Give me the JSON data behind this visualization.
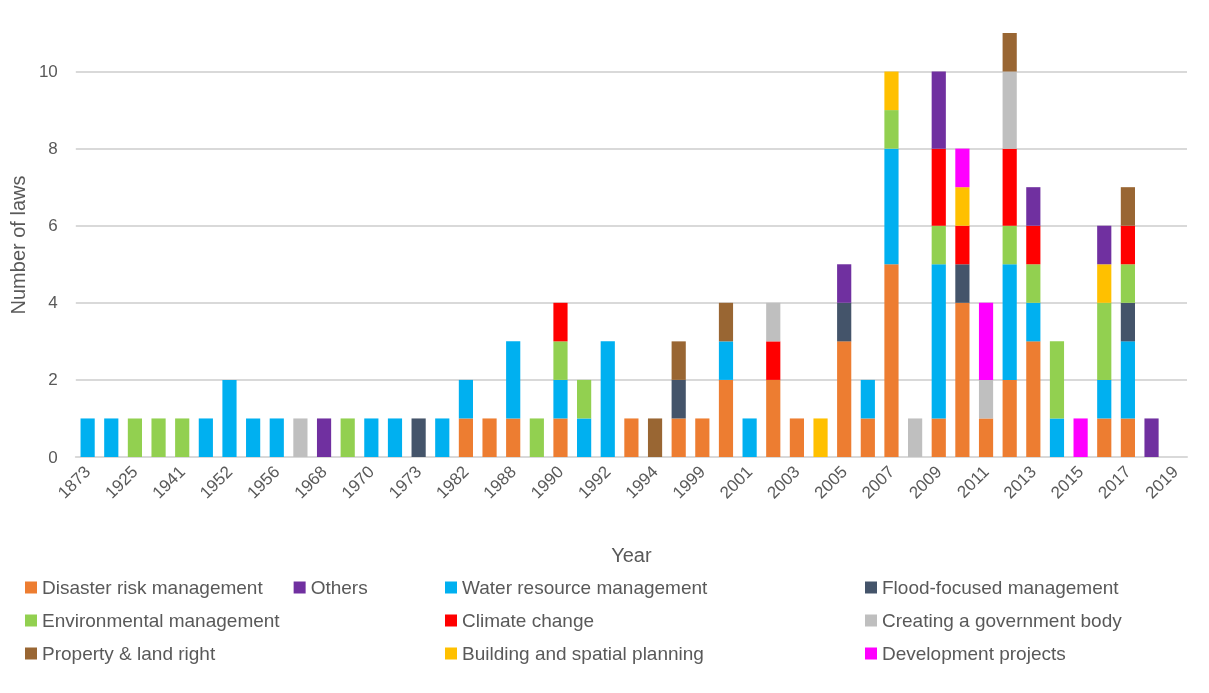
{
  "chart_data": {
    "type": "bar",
    "stacked": true,
    "xlabel": "Year",
    "ylabel": "Number of laws",
    "ylim": [
      0,
      11
    ],
    "yticks": [
      0,
      2,
      4,
      6,
      8,
      10
    ],
    "grid": "y",
    "legend": "bottom",
    "categories": [
      "1873",
      null,
      "1925",
      null,
      "1941",
      null,
      "1952",
      null,
      "1956",
      null,
      "1968",
      null,
      "1970",
      null,
      "1973",
      null,
      "1982",
      null,
      "1988",
      null,
      "1990",
      null,
      "1992",
      null,
      "1994",
      null,
      "1999",
      null,
      "2001",
      null,
      "2003",
      null,
      "2005",
      null,
      "2007",
      null,
      "2009",
      null,
      "2011",
      null,
      "2013",
      null,
      "2015",
      null,
      "2017",
      null,
      "2019"
    ],
    "series": [
      {
        "name": "Disaster risk management",
        "color": "#ed7d31",
        "values": [
          null,
          null,
          null,
          null,
          null,
          null,
          null,
          null,
          null,
          null,
          null,
          null,
          null,
          null,
          null,
          null,
          1,
          1,
          1,
          null,
          1,
          null,
          null,
          1,
          null,
          1,
          1,
          2,
          null,
          2,
          1,
          null,
          3,
          1,
          5,
          null,
          1,
          4,
          1,
          2,
          3,
          null,
          null,
          1,
          1,
          null,
          null
        ]
      },
      {
        "name": "Water resource management",
        "color": "#00b0f0",
        "values": [
          1,
          1,
          null,
          null,
          null,
          1,
          2,
          1,
          1,
          null,
          null,
          null,
          1,
          1,
          null,
          1,
          1,
          null,
          2,
          null,
          1,
          1,
          3,
          null,
          null,
          null,
          null,
          1,
          1,
          null,
          null,
          null,
          null,
          1,
          3,
          null,
          4,
          null,
          null,
          3,
          1,
          1,
          null,
          1,
          2,
          null,
          null
        ]
      },
      {
        "name": "Flood-focused management",
        "color": "#44546a",
        "values": [
          null,
          null,
          null,
          null,
          null,
          null,
          null,
          null,
          null,
          null,
          null,
          null,
          null,
          null,
          1,
          null,
          null,
          null,
          null,
          null,
          null,
          null,
          null,
          null,
          null,
          1,
          null,
          null,
          null,
          null,
          null,
          null,
          1,
          null,
          null,
          null,
          null,
          1,
          null,
          null,
          null,
          null,
          null,
          null,
          1,
          null,
          null
        ]
      },
      {
        "name": "Environmental management",
        "color": "#92d050",
        "values": [
          null,
          null,
          1,
          1,
          1,
          null,
          null,
          null,
          null,
          null,
          null,
          1,
          null,
          null,
          null,
          null,
          null,
          null,
          null,
          1,
          1,
          1,
          null,
          null,
          null,
          null,
          null,
          null,
          null,
          null,
          null,
          null,
          null,
          null,
          1,
          null,
          1,
          null,
          null,
          1,
          1,
          2,
          null,
          2,
          1,
          null,
          null
        ]
      },
      {
        "name": "Climate change",
        "color": "#ff0000",
        "values": [
          null,
          null,
          null,
          null,
          null,
          null,
          null,
          null,
          null,
          null,
          null,
          null,
          null,
          null,
          null,
          null,
          null,
          null,
          null,
          null,
          1,
          null,
          null,
          null,
          null,
          null,
          null,
          null,
          null,
          1,
          null,
          null,
          null,
          null,
          null,
          null,
          2,
          1,
          null,
          2,
          1,
          null,
          null,
          null,
          1,
          null,
          null
        ]
      },
      {
        "name": "Creating a government body",
        "color": "#bfbfbf",
        "values": [
          null,
          null,
          null,
          null,
          null,
          null,
          null,
          null,
          null,
          1,
          null,
          null,
          null,
          null,
          null,
          null,
          null,
          null,
          null,
          null,
          null,
          null,
          null,
          null,
          null,
          null,
          null,
          null,
          null,
          1,
          null,
          null,
          null,
          null,
          null,
          1,
          null,
          null,
          1,
          2,
          null,
          null,
          null,
          null,
          null,
          null,
          null
        ]
      },
      {
        "name": "Property & land right",
        "color": "#996633",
        "values": [
          null,
          null,
          null,
          null,
          null,
          null,
          null,
          null,
          null,
          null,
          null,
          null,
          null,
          null,
          null,
          null,
          null,
          null,
          null,
          null,
          null,
          null,
          null,
          null,
          1,
          1,
          null,
          1,
          null,
          null,
          null,
          null,
          null,
          null,
          null,
          null,
          null,
          null,
          null,
          1,
          null,
          null,
          null,
          null,
          1,
          null,
          null
        ]
      },
      {
        "name": "Building and spatial planning",
        "color": "#ffc000",
        "values": [
          null,
          null,
          null,
          null,
          null,
          null,
          null,
          null,
          null,
          null,
          null,
          null,
          null,
          null,
          null,
          null,
          null,
          null,
          null,
          null,
          null,
          null,
          null,
          null,
          null,
          null,
          null,
          null,
          null,
          null,
          null,
          1,
          null,
          null,
          1,
          null,
          null,
          1,
          null,
          null,
          null,
          null,
          null,
          1,
          null,
          null,
          null
        ]
      },
      {
        "name": "Development projects",
        "color": "#ff00ff",
        "values": [
          null,
          null,
          null,
          null,
          null,
          null,
          null,
          null,
          null,
          null,
          null,
          null,
          null,
          null,
          null,
          null,
          null,
          null,
          null,
          null,
          null,
          null,
          null,
          null,
          null,
          null,
          null,
          null,
          null,
          null,
          null,
          null,
          null,
          null,
          null,
          null,
          null,
          1,
          2,
          null,
          null,
          null,
          1,
          null,
          null,
          null,
          null
        ]
      },
      {
        "name": "Others",
        "color": "#7030a0",
        "values": [
          null,
          null,
          null,
          null,
          null,
          null,
          null,
          null,
          null,
          null,
          1,
          null,
          null,
          null,
          null,
          null,
          null,
          null,
          null,
          null,
          null,
          null,
          null,
          null,
          null,
          null,
          null,
          null,
          null,
          null,
          null,
          null,
          1,
          null,
          null,
          null,
          2,
          null,
          null,
          null,
          1,
          null,
          null,
          1,
          null,
          1,
          null
        ]
      }
    ]
  }
}
